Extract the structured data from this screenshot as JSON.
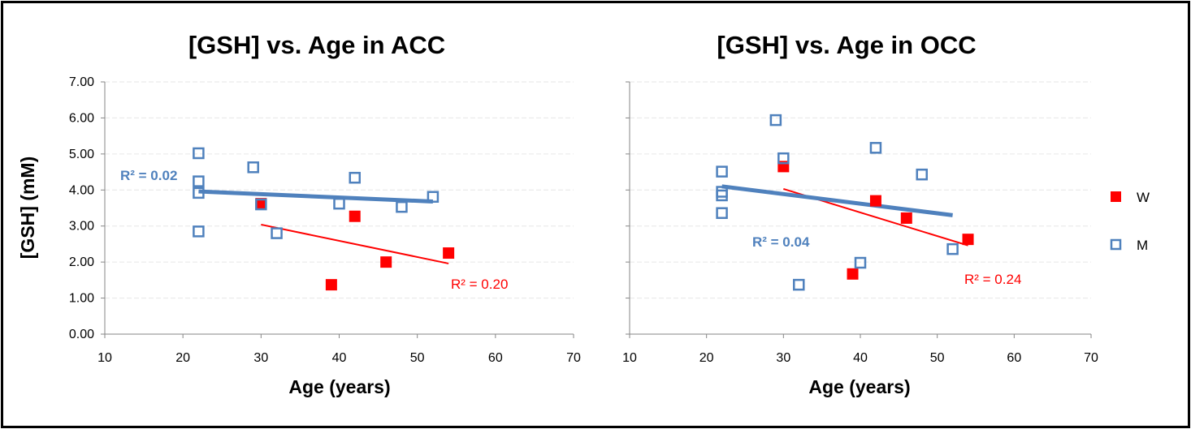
{
  "shared_ylabel": "[GSH] (mM)",
  "colors": {
    "W": "#ff0000",
    "M": "#4f81bd",
    "grid": "#e6e6e6",
    "axis": "#868686"
  },
  "legend": {
    "placement": "right",
    "items": [
      {
        "name": "W",
        "marker": "filled-square"
      },
      {
        "name": "M",
        "marker": "open-square"
      }
    ]
  },
  "chart_data": [
    {
      "type": "scatter",
      "title": "[GSH] vs. Age in ACC",
      "xlabel": "Age (years)",
      "ylabel": "[GSH] (mM)",
      "xlim": [
        10,
        70
      ],
      "ylim": [
        0,
        7
      ],
      "x_ticks": [
        "10",
        "20",
        "30",
        "40",
        "50",
        "60",
        "70"
      ],
      "y_ticks": [
        "0.00",
        "1.00",
        "2.00",
        "3.00",
        "4.00",
        "5.00",
        "6.00",
        "7.00"
      ],
      "grid": "horizontal",
      "series": [
        {
          "name": "W",
          "points": [
            {
              "x": 30,
              "y": 3.62
            },
            {
              "x": 39,
              "y": 1.37
            },
            {
              "x": 42,
              "y": 3.27
            },
            {
              "x": 46,
              "y": 2.0
            },
            {
              "x": 54,
              "y": 2.25
            }
          ],
          "trendline": {
            "x": [
              30,
              54
            ],
            "y": [
              3.04,
              1.96
            ]
          },
          "r2_label": "R² = 0.20"
        },
        {
          "name": "M",
          "points": [
            {
              "x": 22,
              "y": 5.02
            },
            {
              "x": 22,
              "y": 4.24
            },
            {
              "x": 22,
              "y": 3.92
            },
            {
              "x": 22,
              "y": 2.85
            },
            {
              "x": 29,
              "y": 4.63
            },
            {
              "x": 30,
              "y": 3.6
            },
            {
              "x": 32,
              "y": 2.8
            },
            {
              "x": 40,
              "y": 3.62
            },
            {
              "x": 42,
              "y": 4.34
            },
            {
              "x": 48,
              "y": 3.53
            },
            {
              "x": 52,
              "y": 3.81
            }
          ],
          "trendline": {
            "x": [
              22,
              52
            ],
            "y": [
              3.96,
              3.68
            ]
          },
          "r2_label": "R² = 0.02"
        }
      ]
    },
    {
      "type": "scatter",
      "title": "[GSH] vs. Age in OCC",
      "xlabel": "Age (years)",
      "xlim": [
        10,
        70
      ],
      "ylim": [
        0,
        7
      ],
      "x_ticks": [
        "10",
        "20",
        "30",
        "40",
        "50",
        "60",
        "70"
      ],
      "grid": "horizontal",
      "series": [
        {
          "name": "W",
          "points": [
            {
              "x": 30,
              "y": 4.65
            },
            {
              "x": 39,
              "y": 1.67
            },
            {
              "x": 42,
              "y": 3.7
            },
            {
              "x": 46,
              "y": 3.22
            },
            {
              "x": 54,
              "y": 2.63
            }
          ],
          "trendline": {
            "x": [
              30,
              54
            ],
            "y": [
              4.03,
              2.46
            ]
          },
          "r2_label": "R² = 0.24"
        },
        {
          "name": "M",
          "points": [
            {
              "x": 22,
              "y": 4.51
            },
            {
              "x": 22,
              "y": 3.95
            },
            {
              "x": 22,
              "y": 3.85
            },
            {
              "x": 22,
              "y": 3.36
            },
            {
              "x": 29,
              "y": 5.94
            },
            {
              "x": 30,
              "y": 4.88
            },
            {
              "x": 32,
              "y": 1.37
            },
            {
              "x": 40,
              "y": 1.98
            },
            {
              "x": 42,
              "y": 5.17
            },
            {
              "x": 48,
              "y": 4.43
            },
            {
              "x": 52,
              "y": 2.36
            }
          ],
          "trendline": {
            "x": [
              22,
              52
            ],
            "y": [
              4.1,
              3.3
            ]
          },
          "r2_label": "R² = 0.04"
        }
      ]
    }
  ]
}
